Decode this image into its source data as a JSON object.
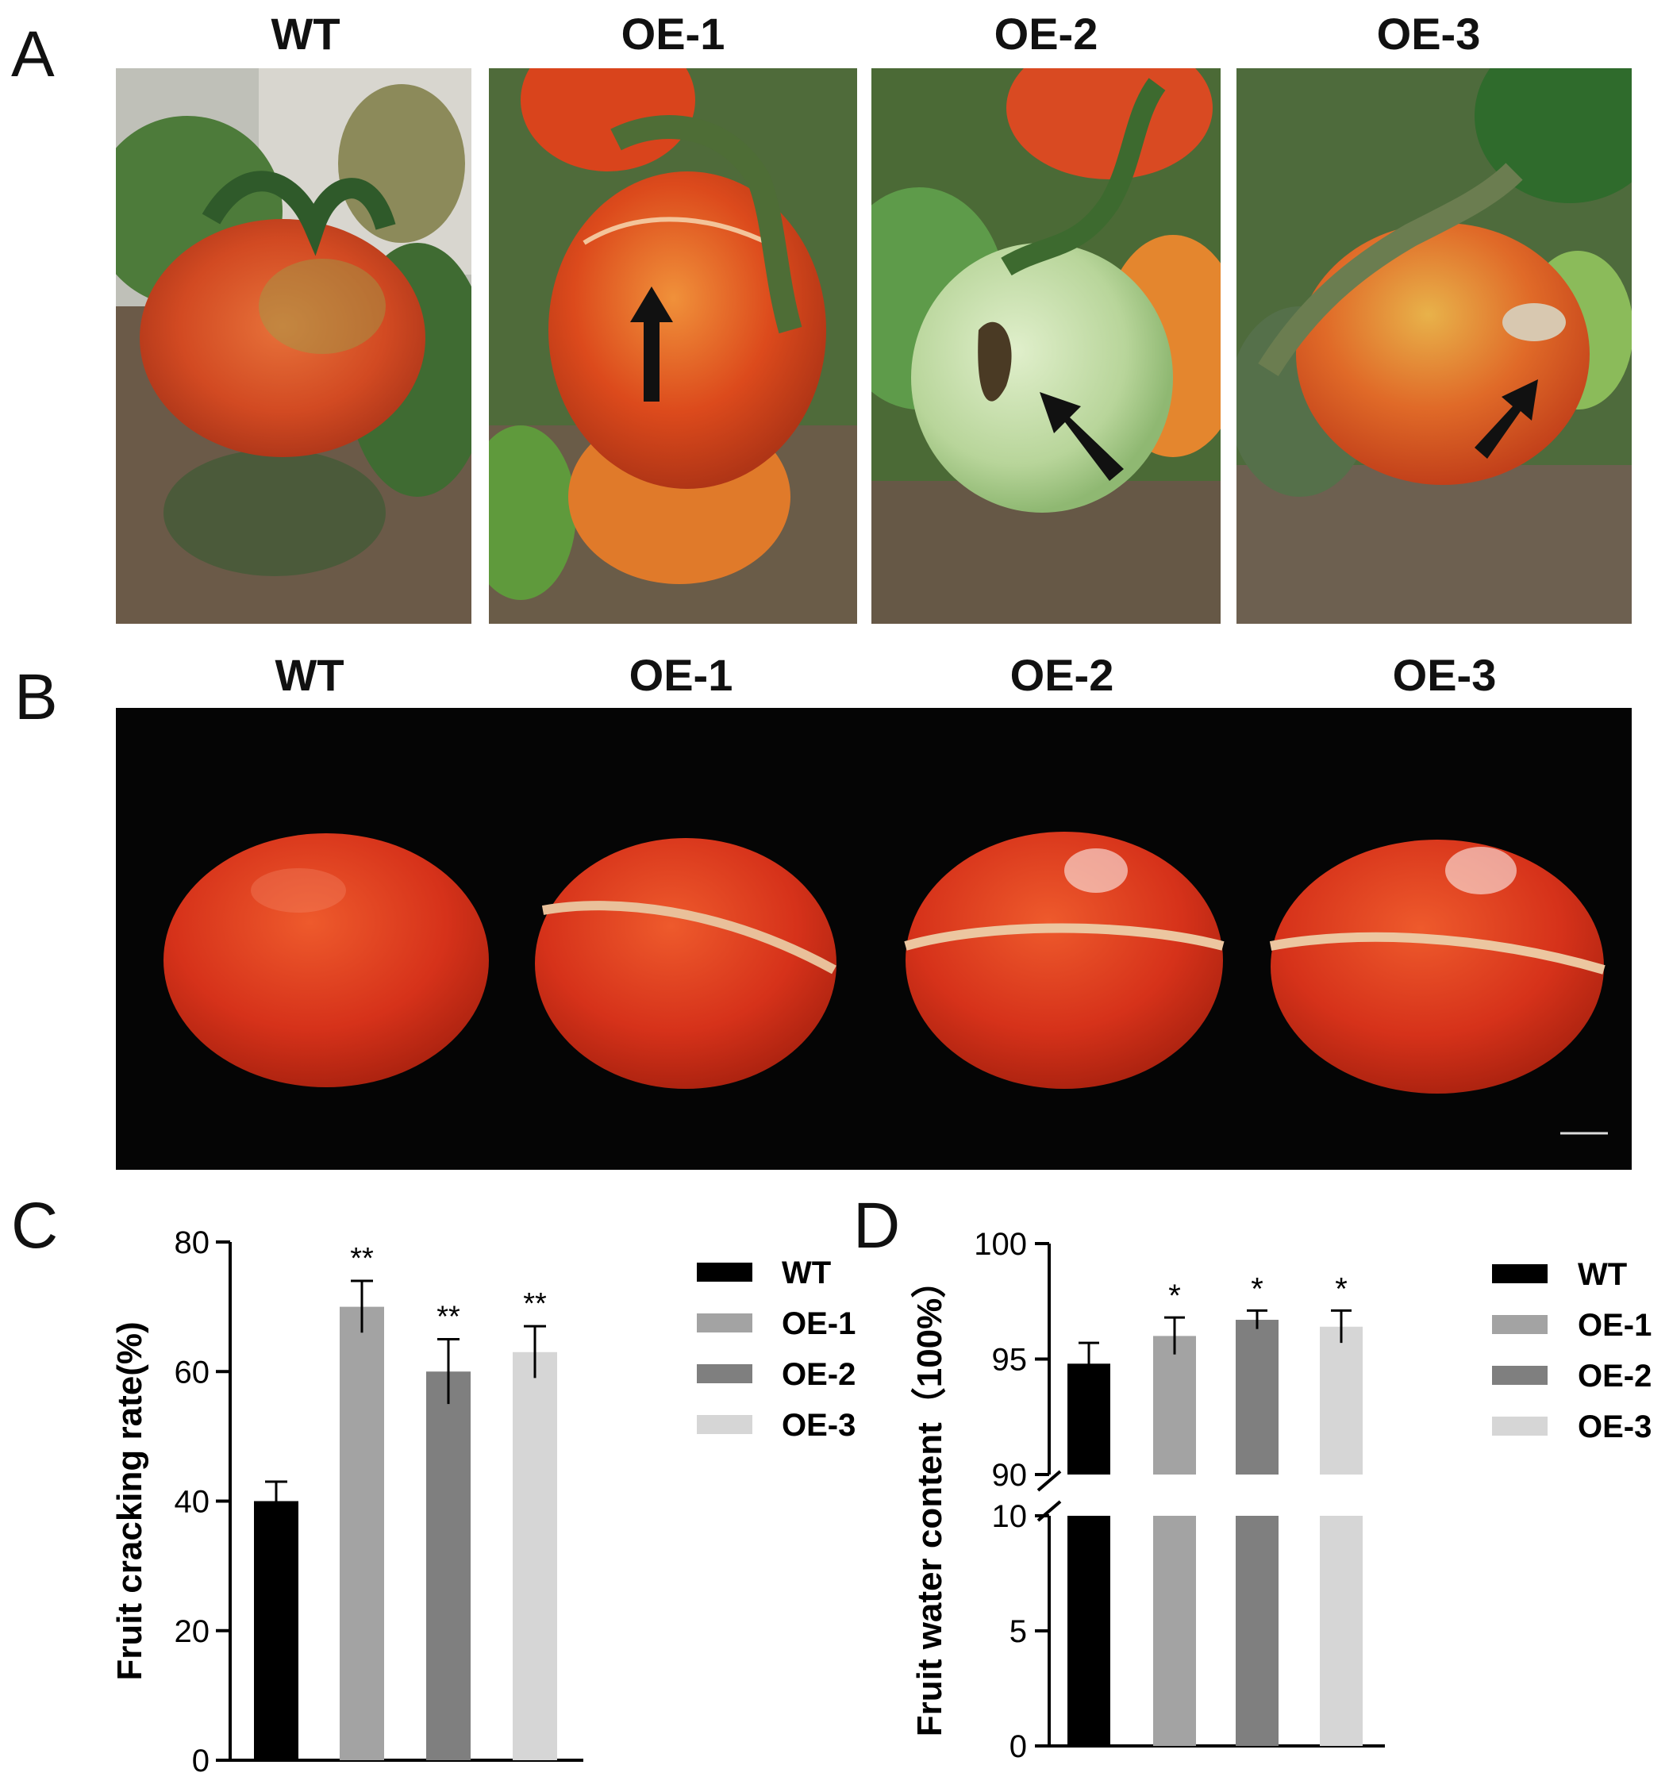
{
  "panel_a": {
    "letter": "A",
    "labels": [
      "WT",
      "OE-1",
      "OE-2",
      "OE-3"
    ]
  },
  "panel_b": {
    "letter": "B",
    "labels": [
      "WT",
      "OE-1",
      "OE-2",
      "OE-3"
    ]
  },
  "colors": {
    "WT": "#000000",
    "OE-1": "#a3a3a3",
    "OE-2": "#7f7f7f",
    "OE-3": "#d6d6d6",
    "tomato_red": "#d93a16",
    "tomato_green": "#a9c98a",
    "foliage": "#3f6b32",
    "soil": "#6b5a48"
  },
  "chart_data": [
    {
      "panel": "C",
      "type": "bar",
      "categories": [
        "WT",
        "OE-1",
        "OE-2",
        "OE-3"
      ],
      "values": [
        40,
        70,
        60,
        63
      ],
      "errors": [
        3,
        4,
        5,
        4
      ],
      "significance": [
        "",
        "**",
        "**",
        "**"
      ],
      "ylabel": "Fruit cracking rate(%)",
      "ylim": [
        0,
        80
      ],
      "yticks": [
        0,
        20,
        40,
        60,
        80
      ],
      "legend": [
        "WT",
        "OE-1",
        "OE-2",
        "OE-3"
      ],
      "legend_position": "right",
      "grid": false
    },
    {
      "panel": "D",
      "type": "bar",
      "categories": [
        "WT",
        "OE-1",
        "OE-2",
        "OE-3"
      ],
      "values": [
        94.8,
        96.0,
        96.7,
        96.4
      ],
      "errors": [
        0.9,
        0.8,
        0.4,
        0.7
      ],
      "significance": [
        "",
        "*",
        "*",
        "*"
      ],
      "ylabel": "Fruit water content（100%）",
      "axis_break": {
        "lower": [
          0,
          10
        ],
        "upper": [
          90,
          100
        ]
      },
      "yticks_lower": [
        0,
        5,
        10
      ],
      "yticks_upper": [
        90,
        95,
        100
      ],
      "legend": [
        "WT",
        "OE-1",
        "OE-2",
        "OE-3"
      ],
      "legend_position": "right",
      "grid": false
    }
  ]
}
